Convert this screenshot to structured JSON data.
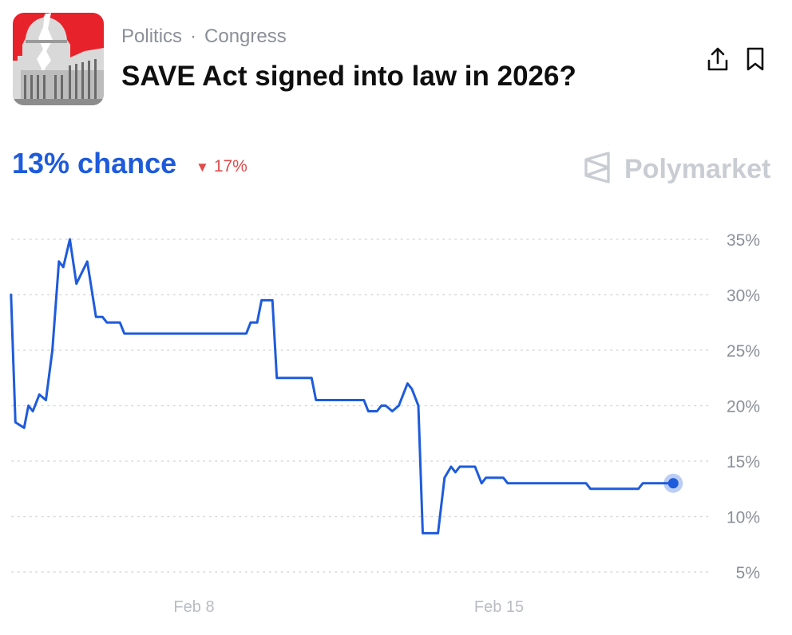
{
  "header": {
    "category": "Politics",
    "separator": "·",
    "subcategory": "Congress",
    "title": "SAVE Act signed into law in 2026?",
    "thumbnail_icon": "us-capitol-image",
    "share_icon": "share-icon",
    "bookmark_icon": "bookmark-icon"
  },
  "summary": {
    "chance_label": "13% chance",
    "delta_arrow": "▼",
    "delta_label": "17%",
    "brand": "Polymarket"
  },
  "colors": {
    "line": "#1e5bdc",
    "delta": "#e04b4b",
    "axis_text": "#8a8f98",
    "grid": "#d5d8dc",
    "brand": "#c9cdd3"
  },
  "chart_data": {
    "type": "line",
    "x_axis": "date",
    "x_ticks": [
      {
        "label": "Feb 8",
        "day": 8
      },
      {
        "label": "Feb 15",
        "day": 15
      }
    ],
    "y_ticks": [
      {
        "label": "35%",
        "value": 35
      },
      {
        "label": "30%",
        "value": 30
      },
      {
        "label": "25%",
        "value": 25
      },
      {
        "label": "20%",
        "value": 20
      },
      {
        "label": "15%",
        "value": 15
      },
      {
        "label": "10%",
        "value": 10
      },
      {
        "label": "5%",
        "value": 5
      }
    ],
    "ylim": [
      5,
      35
    ],
    "grid": "horizontal-dotted",
    "series": [
      {
        "values": [
          [
            3.8,
            30.0
          ],
          [
            3.9,
            18.5
          ],
          [
            4.1,
            18.0
          ],
          [
            4.2,
            20.0
          ],
          [
            4.3,
            19.5
          ],
          [
            4.45,
            21.0
          ],
          [
            4.6,
            20.5
          ],
          [
            4.75,
            25.0
          ],
          [
            4.9,
            33.0
          ],
          [
            5.0,
            32.5
          ],
          [
            5.15,
            35.0
          ],
          [
            5.3,
            31.0
          ],
          [
            5.55,
            33.0
          ],
          [
            5.75,
            28.0
          ],
          [
            5.9,
            28.0
          ],
          [
            6.0,
            27.5
          ],
          [
            6.3,
            27.5
          ],
          [
            6.4,
            26.5
          ],
          [
            9.0,
            26.5
          ],
          [
            9.2,
            26.5
          ],
          [
            9.3,
            27.5
          ],
          [
            9.45,
            27.5
          ],
          [
            9.55,
            29.5
          ],
          [
            9.8,
            29.5
          ],
          [
            9.9,
            22.5
          ],
          [
            10.7,
            22.5
          ],
          [
            10.8,
            20.5
          ],
          [
            11.9,
            20.5
          ],
          [
            12.0,
            19.5
          ],
          [
            12.2,
            19.5
          ],
          [
            12.3,
            20.0
          ],
          [
            12.4,
            20.0
          ],
          [
            12.55,
            19.5
          ],
          [
            12.7,
            20.0
          ],
          [
            12.9,
            22.0
          ],
          [
            13.0,
            21.5
          ],
          [
            13.15,
            20.0
          ],
          [
            13.25,
            8.5
          ],
          [
            13.6,
            8.5
          ],
          [
            13.75,
            13.5
          ],
          [
            13.9,
            14.5
          ],
          [
            14.0,
            14.0
          ],
          [
            14.1,
            14.5
          ],
          [
            14.45,
            14.5
          ],
          [
            14.6,
            13.0
          ],
          [
            14.7,
            13.5
          ],
          [
            15.1,
            13.5
          ],
          [
            15.2,
            13.0
          ],
          [
            17.0,
            13.0
          ],
          [
            17.1,
            12.5
          ],
          [
            18.2,
            12.5
          ],
          [
            18.3,
            13.0
          ],
          [
            19.0,
            13.0
          ]
        ]
      }
    ]
  }
}
